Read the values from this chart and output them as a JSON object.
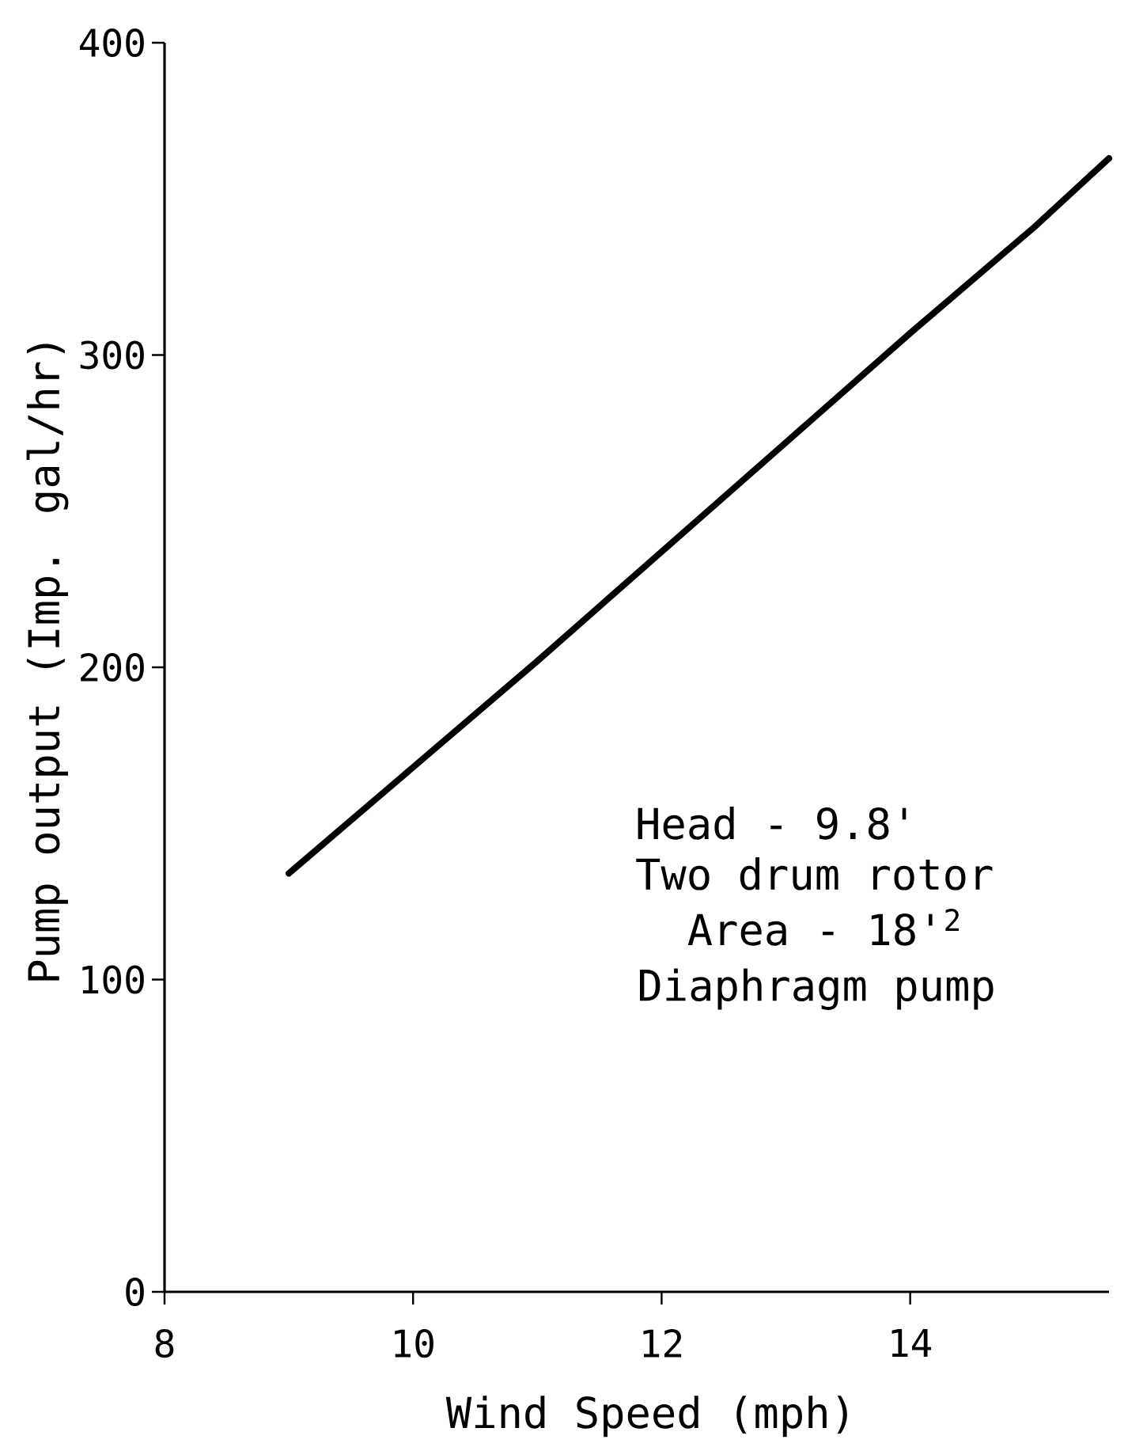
{
  "chart_data": {
    "type": "line",
    "xlabel": "Wind Speed (mph)",
    "ylabel": "Pump output (Imp. gal/hr)",
    "annotations": [
      "Head - 9.8'",
      "Two drum rotor",
      "Area - 18'$^{2}$",
      "Diaphragm pump"
    ],
    "x": [
      9.0,
      10.0,
      11.0,
      12.0,
      13.0,
      14.0,
      15.0,
      15.6
    ],
    "values": [
      134,
      168,
      202,
      237,
      272,
      307,
      341,
      363
    ],
    "color": "#000000",
    "xlim": [
      8,
      15.6
    ],
    "ylim": [
      0,
      400
    ],
    "xticks": [
      8,
      10,
      12,
      14
    ],
    "yticks": [
      0,
      100,
      200,
      300,
      400
    ],
    "marker": "none",
    "line_style": "solid"
  }
}
